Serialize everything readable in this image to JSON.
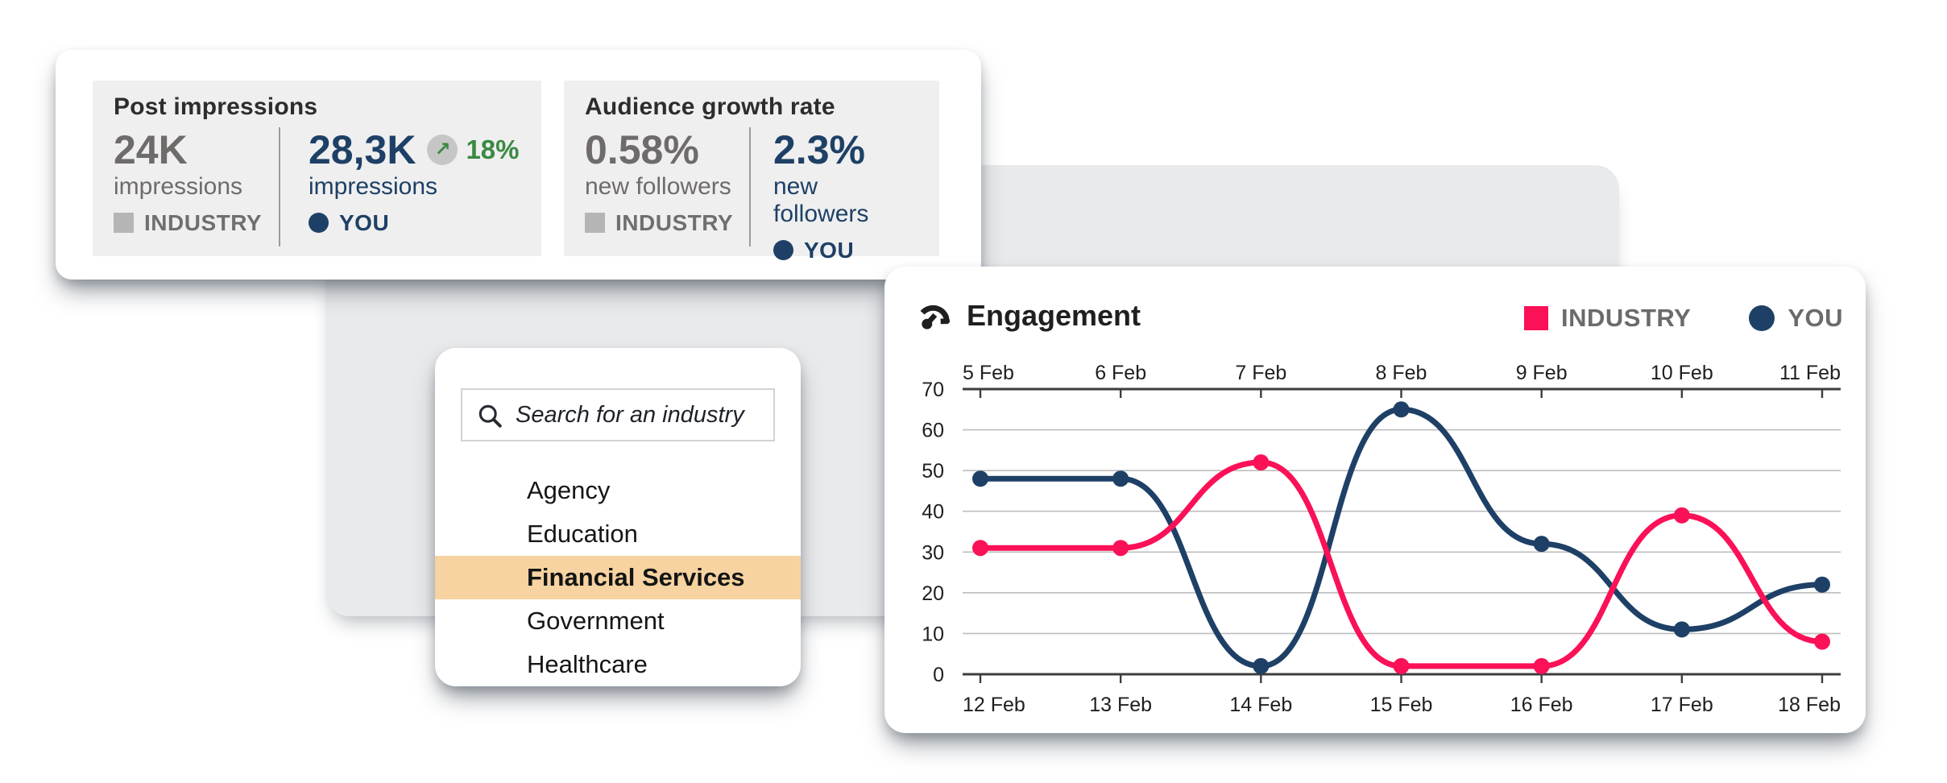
{
  "colors": {
    "navy": "#1e4066",
    "pink": "#fa1157",
    "green": "#3a8a42",
    "key_gray": "#b5b5b5",
    "badge_gray": "#c6c6c6",
    "panel_gray": "#efefef",
    "bg_shape": "#e9eaec",
    "highlight": "#f6d3a0",
    "axis": "#3d3d3d",
    "gridline": "#bdbdbd",
    "label_text": "#1f1f1f"
  },
  "stats_card": {
    "post_impressions": {
      "title": "Post impressions",
      "industry": {
        "value": "24K",
        "label": "impressions",
        "key": "INDUSTRY"
      },
      "you": {
        "value": "28,3K",
        "label": "impressions",
        "key": "YOU",
        "delta": "18%",
        "delta_arrow": "↗"
      }
    },
    "audience_growth": {
      "title": "Audience growth rate",
      "industry": {
        "value": "0.58%",
        "label": "new followers",
        "key": "INDUSTRY"
      },
      "you": {
        "value": "2.3%",
        "label": "new followers",
        "key": "YOU"
      }
    }
  },
  "industry_picker": {
    "search_placeholder": "Search for an industry",
    "items": [
      {
        "label": "Agency",
        "selected": false
      },
      {
        "label": "Education",
        "selected": false
      },
      {
        "label": "Financial Services",
        "selected": true
      },
      {
        "label": "Government",
        "selected": false
      },
      {
        "label": "Healthcare",
        "selected": false
      }
    ]
  },
  "engagement_card": {
    "title": "Engagement",
    "legend": [
      {
        "label": "INDUSTRY",
        "marker": "square",
        "color": "#fa1157"
      },
      {
        "label": "YOU",
        "marker": "circle",
        "color": "#1e4066"
      }
    ]
  },
  "chart_data": {
    "type": "line",
    "title": "Engagement",
    "top_axis_labels": [
      "5 Feb",
      "6 Feb",
      "7 Feb",
      "8 Feb",
      "9 Feb",
      "10 Feb",
      "11 Feb"
    ],
    "bottom_axis_labels": [
      "12 Feb",
      "13 Feb",
      "14 Feb",
      "15 Feb",
      "16 Feb",
      "17 Feb",
      "18 Feb"
    ],
    "y_ticks": [
      70,
      60,
      50,
      40,
      30,
      20,
      10,
      0
    ],
    "ylim": [
      0,
      70
    ],
    "grid": true,
    "legend_position": "top-right",
    "series": [
      {
        "name": "INDUSTRY",
        "color": "#fa1157",
        "marker": "circle",
        "values": [
          31,
          31,
          52,
          2,
          2,
          39,
          8
        ]
      },
      {
        "name": "YOU",
        "color": "#1e4066",
        "marker": "circle",
        "values": [
          48,
          48,
          2,
          65,
          32,
          11,
          22
        ]
      }
    ]
  }
}
